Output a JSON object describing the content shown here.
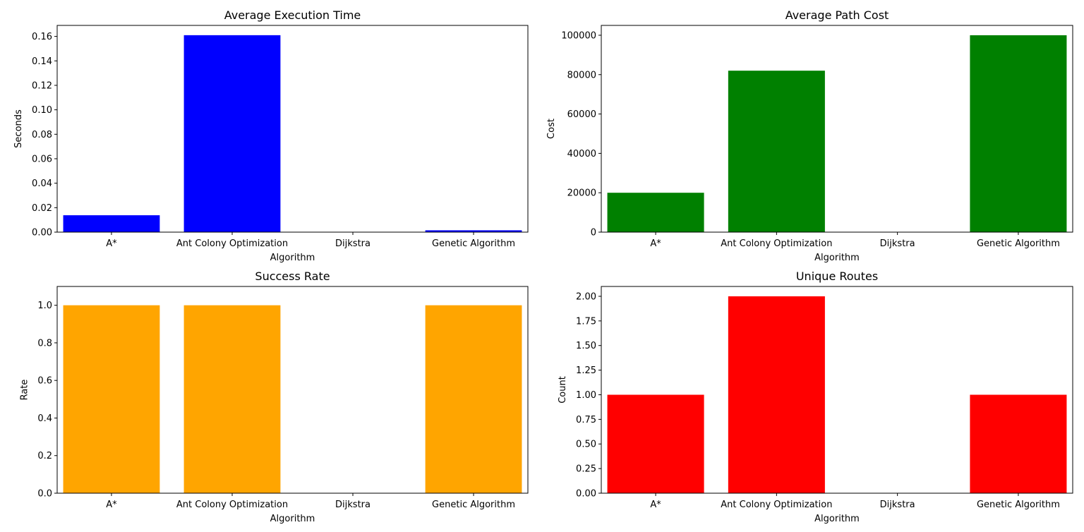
{
  "chart_data": [
    {
      "type": "bar",
      "title": "Average Execution Time",
      "xlabel": "Algorithm",
      "ylabel": "Seconds",
      "categories": [
        "A*",
        "Ant Colony Optimization",
        "Dijkstra",
        "Genetic Algorithm"
      ],
      "values": [
        0.0138,
        0.161,
        0,
        0.0015
      ],
      "ylim": [
        0,
        0.169
      ],
      "yticks": [
        0.0,
        0.02,
        0.04,
        0.06,
        0.08,
        0.1,
        0.12,
        0.14,
        0.16
      ],
      "ytick_labels": [
        "0.00",
        "0.02",
        "0.04",
        "0.06",
        "0.08",
        "0.10",
        "0.12",
        "0.14",
        "0.16"
      ],
      "color": "#0000ff",
      "grid": false
    },
    {
      "type": "bar",
      "title": "Average Path Cost",
      "xlabel": "Algorithm",
      "ylabel": "Cost",
      "categories": [
        "A*",
        "Ant Colony Optimization",
        "Dijkstra",
        "Genetic Algorithm"
      ],
      "values": [
        20000,
        82000,
        0,
        100000
      ],
      "ylim": [
        0,
        105000
      ],
      "yticks": [
        0,
        20000,
        40000,
        60000,
        80000,
        100000
      ],
      "ytick_labels": [
        "0",
        "20000",
        "40000",
        "60000",
        "80000",
        "100000"
      ],
      "color": "#008000",
      "grid": false
    },
    {
      "type": "bar",
      "title": "Success Rate",
      "xlabel": "Algorithm",
      "ylabel": "Rate",
      "categories": [
        "A*",
        "Ant Colony Optimization",
        "Dijkstra",
        "Genetic Algorithm"
      ],
      "values": [
        1.0,
        1.0,
        0,
        1.0
      ],
      "ylim": [
        0,
        1.1
      ],
      "yticks": [
        0.0,
        0.2,
        0.4,
        0.6,
        0.8,
        1.0
      ],
      "ytick_labels": [
        "0.0",
        "0.2",
        "0.4",
        "0.6",
        "0.8",
        "1.0"
      ],
      "color": "#ffa500",
      "grid": false
    },
    {
      "type": "bar",
      "title": "Unique Routes",
      "xlabel": "Algorithm",
      "ylabel": "Count",
      "categories": [
        "A*",
        "Ant Colony Optimization",
        "Dijkstra",
        "Genetic Algorithm"
      ],
      "values": [
        1,
        2,
        0,
        1
      ],
      "ylim": [
        0,
        2.1
      ],
      "yticks": [
        0.0,
        0.25,
        0.5,
        0.75,
        1.0,
        1.25,
        1.5,
        1.75,
        2.0
      ],
      "ytick_labels": [
        "0.00",
        "0.25",
        "0.50",
        "0.75",
        "1.00",
        "1.25",
        "1.50",
        "1.75",
        "2.00"
      ],
      "color": "#ff0000",
      "grid": false
    }
  ]
}
